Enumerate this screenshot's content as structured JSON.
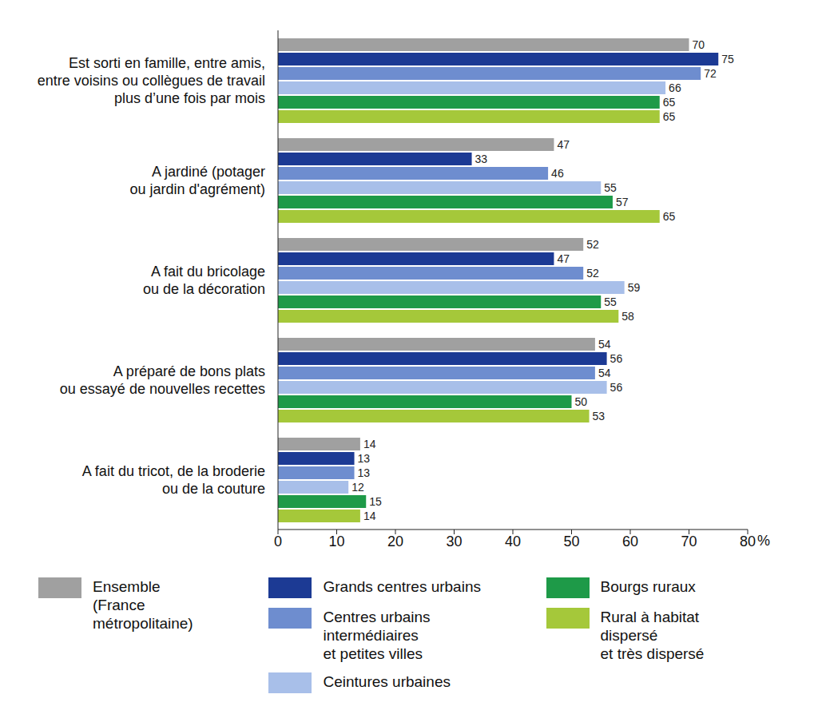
{
  "chart_data": {
    "type": "bar",
    "orientation": "horizontal",
    "categories": [
      "Est sorti en famille, entre amis,\nentre voisins ou collègues de travail\nplus d’une fois par mois",
      "A jardiné (potager\nou jardin d'agrément)",
      "A fait du bricolage\nou de la décoration",
      "A préparé de bons plats\nou essayé de nouvelles recettes",
      "A fait du tricot, de la broderie\nou de la couture"
    ],
    "series": [
      {
        "name": "Ensemble\n(France métropolitaine)",
        "color": "#a0a0a0",
        "values": [
          70,
          47,
          52,
          54,
          14
        ]
      },
      {
        "name": "Grands centres urbains",
        "color": "#1c3a94",
        "values": [
          75,
          33,
          47,
          56,
          13
        ]
      },
      {
        "name": "Centres urbains intermédiaires\net petites villes",
        "color": "#6e8dcf",
        "values": [
          72,
          46,
          52,
          54,
          13
        ]
      },
      {
        "name": "Ceintures urbaines",
        "color": "#a8bfe9",
        "values": [
          66,
          55,
          59,
          56,
          12
        ]
      },
      {
        "name": "Bourgs ruraux",
        "color": "#1e9a48",
        "values": [
          65,
          57,
          55,
          50,
          15
        ]
      },
      {
        "name": "Rural à habitat dispersé\net très dispersé",
        "color": "#a5c83a",
        "values": [
          65,
          65,
          58,
          53,
          14
        ]
      }
    ],
    "x_label": "%",
    "xlim": [
      0,
      80
    ],
    "xticks": [
      0,
      10,
      20,
      30,
      40,
      50,
      60,
      70,
      80
    ],
    "grid": false,
    "legend": "bottom",
    "data_labels": true
  }
}
